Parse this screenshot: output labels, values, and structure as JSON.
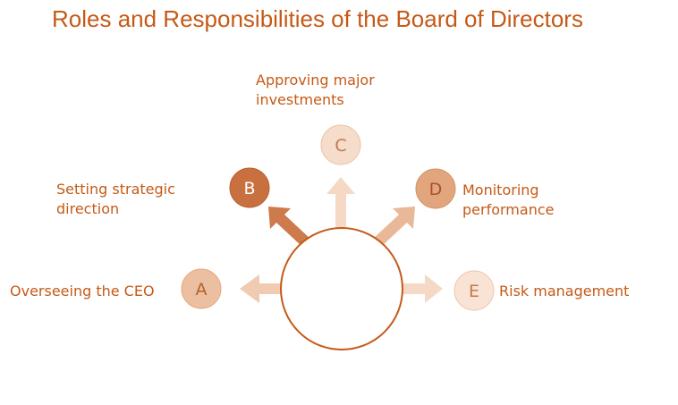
{
  "title": "Roles and Responsibilities of the Board of Directors",
  "colors": {
    "text": "#c55a17",
    "center_border": "#c55a17"
  },
  "nodes": [
    {
      "letter": "A",
      "label_lines": [
        "Overseeing the CEO"
      ],
      "fill": "#ebbf9f",
      "text": "#b5602a"
    },
    {
      "letter": "B",
      "label_lines": [
        "Setting strategic",
        "direction"
      ],
      "fill": "#c8703f",
      "text": "#ffffff"
    },
    {
      "letter": "C",
      "label_lines": [
        "Approving major",
        "investments"
      ],
      "fill": "#f6dccb",
      "text": "#c07a4c"
    },
    {
      "letter": "D",
      "label_lines": [
        "Monitoring",
        "performance"
      ],
      "fill": "#e2a67f",
      "text": "#a9532a"
    },
    {
      "letter": "E",
      "label_lines": [
        "Risk management"
      ],
      "fill": "#f9e3d4",
      "text": "#c07a4c"
    }
  ]
}
